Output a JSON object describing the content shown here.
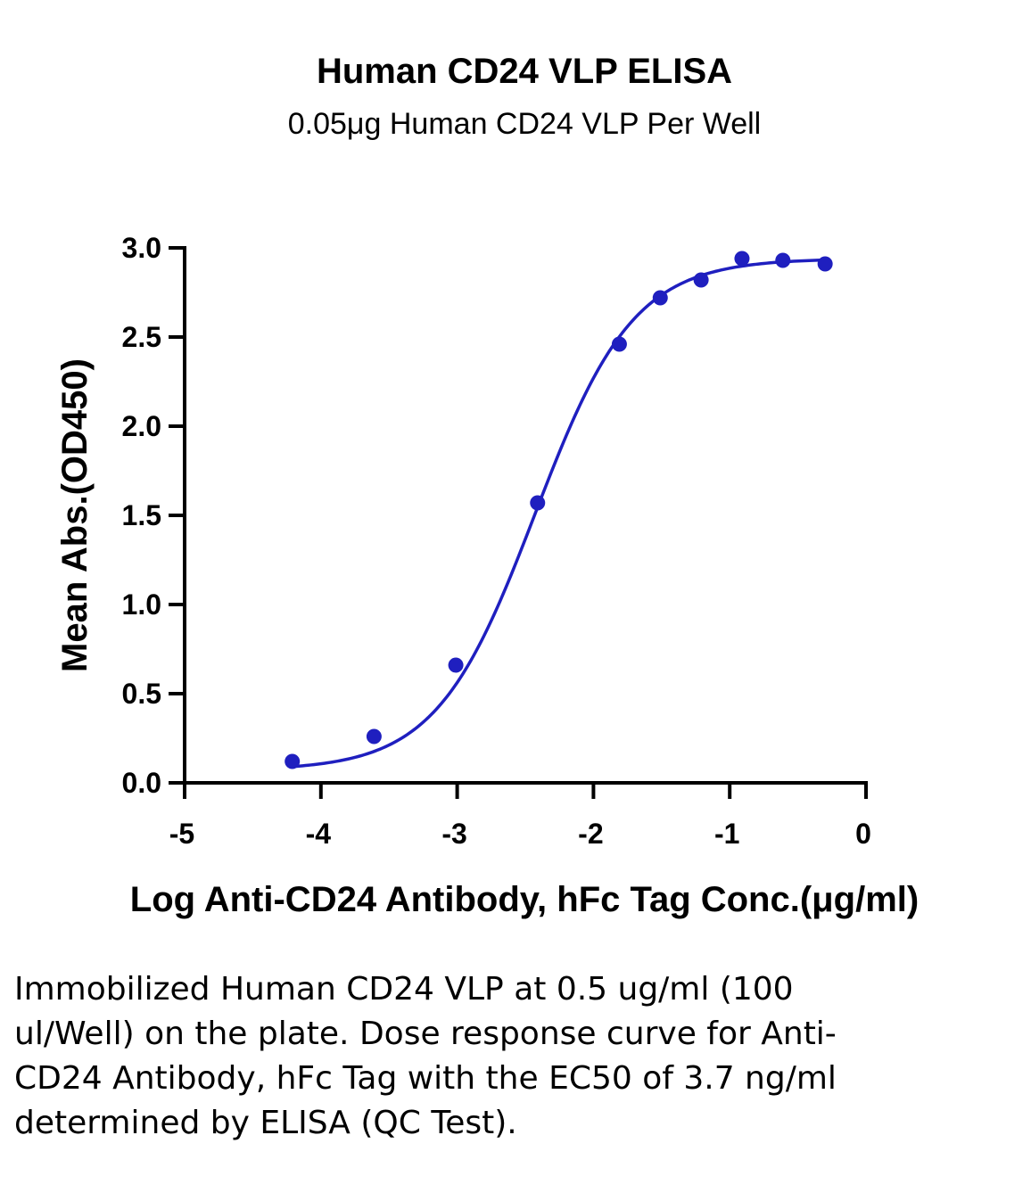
{
  "chart_data": {
    "type": "scatter",
    "title": "Human CD24 VLP ELISA",
    "subtitle": "0.05μg Human CD24 VLP Per Well",
    "xlabel": "Log Anti-CD24 Antibody, hFc Tag Conc.(μg/ml)",
    "ylabel": "Mean Abs.(OD450)",
    "xlim": [
      -5,
      0
    ],
    "ylim": [
      0,
      3
    ],
    "xticks": [
      "-5",
      "-4",
      "-3",
      "-2",
      "-1",
      "0"
    ],
    "yticks": [
      "0.0",
      "0.5",
      "1.0",
      "1.5",
      "2.0",
      "2.5",
      "3.0"
    ],
    "grid": false,
    "color": "#1f1fbf",
    "points": [
      {
        "x": -4.21,
        "y": 0.12
      },
      {
        "x": -3.61,
        "y": 0.26
      },
      {
        "x": -3.01,
        "y": 0.66
      },
      {
        "x": -2.41,
        "y": 1.57
      },
      {
        "x": -1.81,
        "y": 2.46
      },
      {
        "x": -1.51,
        "y": 2.72
      },
      {
        "x": -1.21,
        "y": 2.82
      },
      {
        "x": -0.91,
        "y": 2.94
      },
      {
        "x": -0.61,
        "y": 2.93
      },
      {
        "x": -0.3,
        "y": 2.91
      }
    ],
    "fit": {
      "model": "4PL",
      "bottom": 0.07,
      "top": 2.94,
      "logEC50": -2.43,
      "hill": 1.2
    }
  },
  "caption": "Immobilized Human CD24 VLP at 0.5 ug/ml (100 ul/Well) on the plate. Dose response curve for Anti-CD24 Antibody, hFc Tag with the EC50 of 3.7 ng/ml determined by ELISA (QC Test)."
}
